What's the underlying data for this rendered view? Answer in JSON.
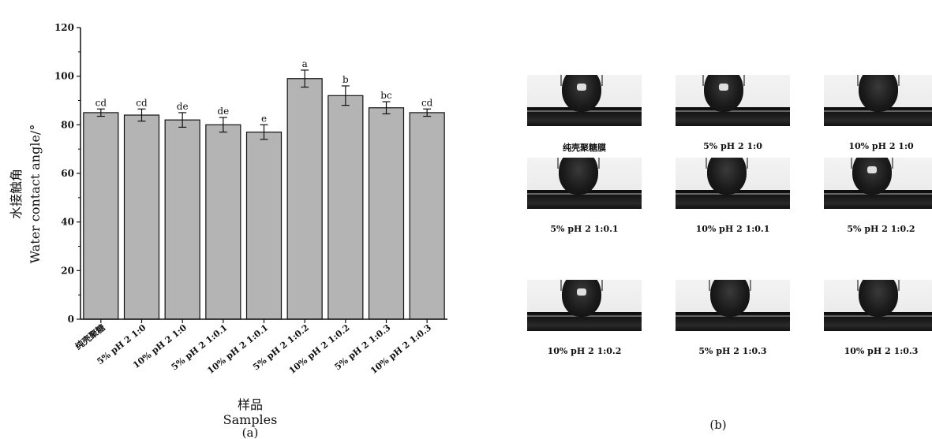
{
  "chart_data": {
    "type": "bar",
    "categories": [
      "纯壳聚糖",
      "5% pH 2 1:0",
      "10% pH 2 1:0",
      "5% pH 2 1:0.1",
      "10% pH 2 1:0.1",
      "5% pH 2 1:0.2",
      "10% pH 2 1:0.2",
      "5% pH 2 1:0.3",
      "10% pH 2 1:0.3"
    ],
    "values": [
      85,
      84,
      82,
      80,
      77,
      99,
      92,
      87,
      85
    ],
    "errors": [
      1.5,
      2.5,
      3,
      3,
      3,
      3.5,
      4,
      2.5,
      1.5
    ],
    "significance": [
      "cd",
      "cd",
      "de",
      "de",
      "e",
      "a",
      "b",
      "bc",
      "cd"
    ],
    "ylim": [
      0,
      120
    ],
    "yticks": [
      0,
      20,
      40,
      60,
      80,
      100,
      120
    ],
    "ylabel_cn": "水接触角",
    "ylabel_en": "Water  contact  angle/°",
    "xlabel_cn": "样品",
    "xlabel_en": "Samples",
    "panel_label": "(a)",
    "bar_color": "#b4b4b4",
    "grid": false
  },
  "photo_panel": {
    "panel_label": "(b)",
    "items": [
      {
        "label": "纯壳聚糖膜",
        "highlight": true
      },
      {
        "label": "5% pH 2 1:0",
        "highlight": true
      },
      {
        "label": "10% pH 2 1:0",
        "highlight": false
      },
      {
        "label": "5% pH 2 1:0.1",
        "highlight": false
      },
      {
        "label": "10% pH 2 1:0.1",
        "highlight": false
      },
      {
        "label": "5% pH 2 1:0.2",
        "highlight": true
      },
      {
        "label": "10% pH 2 1:0.2",
        "highlight": true
      },
      {
        "label": "5% pH 2 1:0.3",
        "highlight": false
      },
      {
        "label": "10% pH 2 1:0.3",
        "highlight": false
      }
    ]
  }
}
